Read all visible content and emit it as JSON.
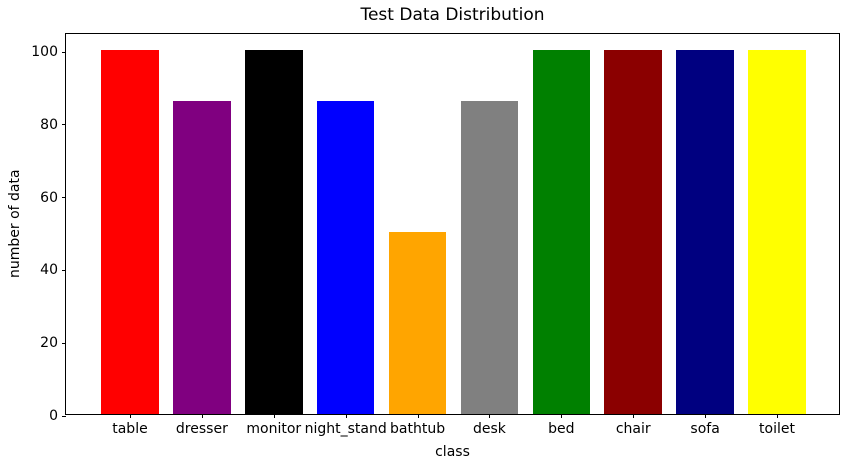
{
  "chart_data": {
    "type": "bar",
    "title": "Test Data Distribution",
    "xlabel": "class",
    "ylabel": "number of data",
    "categories": [
      "table",
      "dresser",
      "monitor",
      "night_stand",
      "bathtub",
      "desk",
      "bed",
      "chair",
      "sofa",
      "toilet"
    ],
    "values": [
      100,
      86,
      100,
      86,
      50,
      86,
      100,
      100,
      100,
      100
    ],
    "bar_colors": [
      "#ff0000",
      "#800080",
      "#000000",
      "#0000ff",
      "#ffa500",
      "#808080",
      "#008000",
      "#8b0000",
      "#000080",
      "#ffff00"
    ],
    "yticks": [
      0,
      20,
      40,
      60,
      80,
      100
    ],
    "ylim": [
      0,
      105
    ],
    "bar_width_fraction": 0.8,
    "grid": false,
    "legend": "none",
    "spine_color": "#000000",
    "background_color": "#ffffff"
  }
}
